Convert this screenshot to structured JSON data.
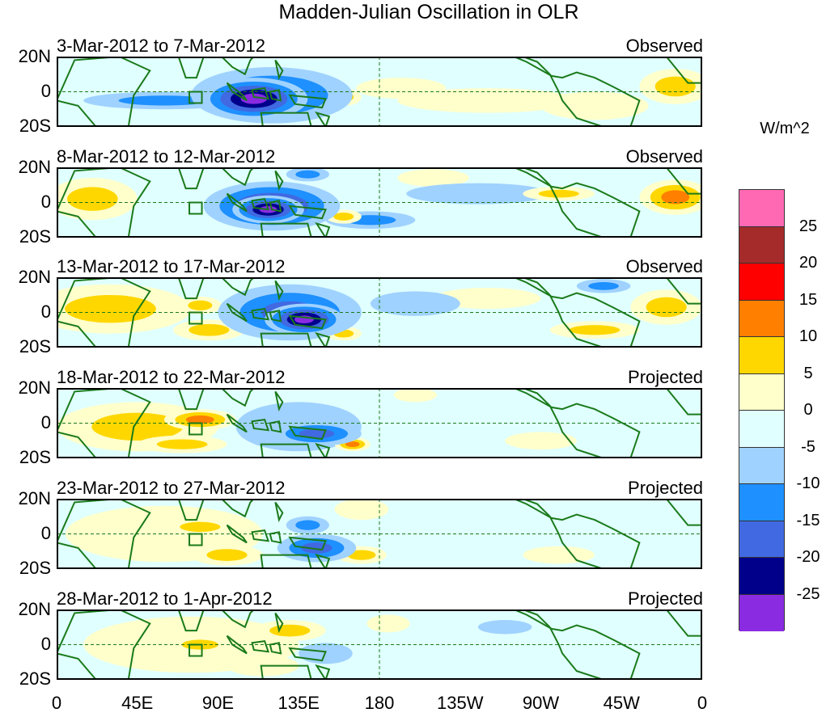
{
  "title": "Madden-Julian Oscillation in OLR",
  "units": "W/m^2",
  "lat_labels": [
    "20N",
    "0",
    "20S"
  ],
  "lon_labels": [
    "0",
    "45E",
    "90E",
    "135E",
    "180",
    "135W",
    "90W",
    "45W",
    "0"
  ],
  "panels": [
    {
      "dates": "3-Mar-2012 to 7-Mar-2012",
      "status": "Observed",
      "anomalies": [
        {
          "lon": 110,
          "lat": -4,
          "rx": 30,
          "ry": 12,
          "value": -28
        },
        {
          "lon": 120,
          "lat": -2,
          "rx": 45,
          "ry": 16,
          "value": -18
        },
        {
          "lon": 60,
          "lat": -5,
          "rx": 45,
          "ry": 5,
          "value": -14
        },
        {
          "lon": 160,
          "lat": -3,
          "rx": 10,
          "ry": 5,
          "value": 12
        },
        {
          "lon": 192,
          "lat": 2,
          "rx": 25,
          "ry": 6,
          "value": 6
        },
        {
          "lon": 240,
          "lat": -5,
          "rx": 50,
          "ry": 7,
          "value": 5
        },
        {
          "lon": 300,
          "lat": -8,
          "rx": 30,
          "ry": 8,
          "value": 8
        },
        {
          "lon": 345,
          "lat": 3,
          "rx": 20,
          "ry": 10,
          "value": 12
        },
        {
          "lon": 20,
          "lat": 2,
          "rx": 30,
          "ry": 12,
          "value": -3
        },
        {
          "lon": 270,
          "lat": 10,
          "rx": 30,
          "ry": 5,
          "value": -4
        }
      ]
    },
    {
      "dates": "8-Mar-2012 to 12-Mar-2012",
      "status": "Observed",
      "anomalies": [
        {
          "lon": 118,
          "lat": -4,
          "rx": 20,
          "ry": 8,
          "value": -28
        },
        {
          "lon": 120,
          "lat": -2,
          "rx": 38,
          "ry": 14,
          "value": -20
        },
        {
          "lon": 175,
          "lat": -10,
          "rx": 25,
          "ry": 5,
          "value": -12
        },
        {
          "lon": 20,
          "lat": 2,
          "rx": 25,
          "ry": 12,
          "value": 10
        },
        {
          "lon": 160,
          "lat": -8,
          "rx": 10,
          "ry": 4,
          "value": 12
        },
        {
          "lon": 140,
          "lat": 16,
          "rx": 12,
          "ry": 4,
          "value": -14
        },
        {
          "lon": 235,
          "lat": 5,
          "rx": 40,
          "ry": 6,
          "value": -6
        },
        {
          "lon": 280,
          "lat": 5,
          "rx": 20,
          "ry": 4,
          "value": 10
        },
        {
          "lon": 345,
          "lat": 3,
          "rx": 20,
          "ry": 10,
          "value": 15
        },
        {
          "lon": 210,
          "lat": 14,
          "rx": 20,
          "ry": 5,
          "value": 5
        }
      ]
    },
    {
      "dates": "13-Mar-2012 to 17-Mar-2012",
      "status": "Observed",
      "anomalies": [
        {
          "lon": 138,
          "lat": -4,
          "rx": 22,
          "ry": 9,
          "value": -27
        },
        {
          "lon": 130,
          "lat": 0,
          "rx": 40,
          "ry": 16,
          "value": -16
        },
        {
          "lon": 30,
          "lat": 2,
          "rx": 45,
          "ry": 14,
          "value": 12
        },
        {
          "lon": 80,
          "lat": 4,
          "rx": 12,
          "ry": 5,
          "value": 14
        },
        {
          "lon": 85,
          "lat": -10,
          "rx": 20,
          "ry": 6,
          "value": 10
        },
        {
          "lon": 160,
          "lat": -12,
          "rx": 10,
          "ry": 4,
          "value": 12
        },
        {
          "lon": 200,
          "lat": 5,
          "rx": 25,
          "ry": 7,
          "value": -8
        },
        {
          "lon": 240,
          "lat": 8,
          "rx": 30,
          "ry": 6,
          "value": 5
        },
        {
          "lon": 300,
          "lat": -10,
          "rx": 25,
          "ry": 5,
          "value": 10
        },
        {
          "lon": 340,
          "lat": 3,
          "rx": 20,
          "ry": 10,
          "value": 12
        },
        {
          "lon": 305,
          "lat": 15,
          "rx": 15,
          "ry": 4,
          "value": -12
        }
      ]
    },
    {
      "dates": "18-Mar-2012 to 22-Mar-2012",
      "status": "Projected",
      "anomalies": [
        {
          "lon": 45,
          "lat": -2,
          "rx": 45,
          "ry": 14,
          "value": 10
        },
        {
          "lon": 80,
          "lat": 2,
          "rx": 20,
          "ry": 6,
          "value": 16
        },
        {
          "lon": 70,
          "lat": -12,
          "rx": 25,
          "ry": 5,
          "value": 12
        },
        {
          "lon": 145,
          "lat": -6,
          "rx": 25,
          "ry": 7,
          "value": -18
        },
        {
          "lon": 135,
          "lat": -2,
          "rx": 35,
          "ry": 14,
          "value": -8
        },
        {
          "lon": 165,
          "lat": -12,
          "rx": 10,
          "ry": 4,
          "value": 15
        },
        {
          "lon": 210,
          "lat": 3,
          "rx": 40,
          "ry": 10,
          "value": -4
        },
        {
          "lon": 270,
          "lat": -10,
          "rx": 20,
          "ry": 5,
          "value": 5
        },
        {
          "lon": 200,
          "lat": 16,
          "rx": 12,
          "ry": 4,
          "value": 5
        }
      ]
    },
    {
      "dates": "23-Mar-2012 to 27-Mar-2012",
      "status": "Projected",
      "anomalies": [
        {
          "lon": 60,
          "lat": 0,
          "rx": 55,
          "ry": 16,
          "value": 6
        },
        {
          "lon": 95,
          "lat": -12,
          "rx": 20,
          "ry": 6,
          "value": 14
        },
        {
          "lon": 80,
          "lat": 4,
          "rx": 20,
          "ry": 5,
          "value": 10
        },
        {
          "lon": 145,
          "lat": -8,
          "rx": 22,
          "ry": 8,
          "value": -16
        },
        {
          "lon": 140,
          "lat": 5,
          "rx": 12,
          "ry": 5,
          "value": -10
        },
        {
          "lon": 170,
          "lat": -12,
          "rx": 14,
          "ry": 5,
          "value": 10
        },
        {
          "lon": 170,
          "lat": 14,
          "rx": 15,
          "ry": 6,
          "value": 5
        },
        {
          "lon": 230,
          "lat": 0,
          "rx": 40,
          "ry": 8,
          "value": -4
        },
        {
          "lon": 280,
          "lat": -12,
          "rx": 20,
          "ry": 5,
          "value": 5
        }
      ]
    },
    {
      "dates": "28-Mar-2012 to 1-Apr-2012",
      "status": "Projected",
      "anomalies": [
        {
          "lon": 75,
          "lat": 0,
          "rx": 60,
          "ry": 16,
          "value": 5
        },
        {
          "lon": 130,
          "lat": 8,
          "rx": 20,
          "ry": 6,
          "value": 12
        },
        {
          "lon": 115,
          "lat": -12,
          "rx": 20,
          "ry": 6,
          "value": 8
        },
        {
          "lon": 80,
          "lat": 0,
          "rx": 18,
          "ry": 5,
          "value": 10
        },
        {
          "lon": 150,
          "lat": -5,
          "rx": 15,
          "ry": 6,
          "value": -8
        },
        {
          "lon": 220,
          "lat": 0,
          "rx": 40,
          "ry": 10,
          "value": -4
        },
        {
          "lon": 250,
          "lat": 10,
          "rx": 15,
          "ry": 4,
          "value": -6
        },
        {
          "lon": 185,
          "lat": 12,
          "rx": 12,
          "ry": 5,
          "value": 5
        }
      ]
    }
  ],
  "colorbar": {
    "colors": [
      "#ff69b4",
      "#a52a2a",
      "#ff0000",
      "#ff7f00",
      "#ffd700",
      "#ffffcc",
      "#e0ffff",
      "#a0d2ff",
      "#1e90ff",
      "#4169e1",
      "#00008b",
      "#8a2be2"
    ],
    "tick_labels": [
      "25",
      "20",
      "15",
      "10",
      "5",
      "0",
      "-5",
      "-10",
      "-15",
      "-20",
      "-25"
    ],
    "levels": [
      25,
      20,
      15,
      10,
      5,
      0,
      -5,
      -10,
      -15,
      -20,
      -25
    ]
  }
}
